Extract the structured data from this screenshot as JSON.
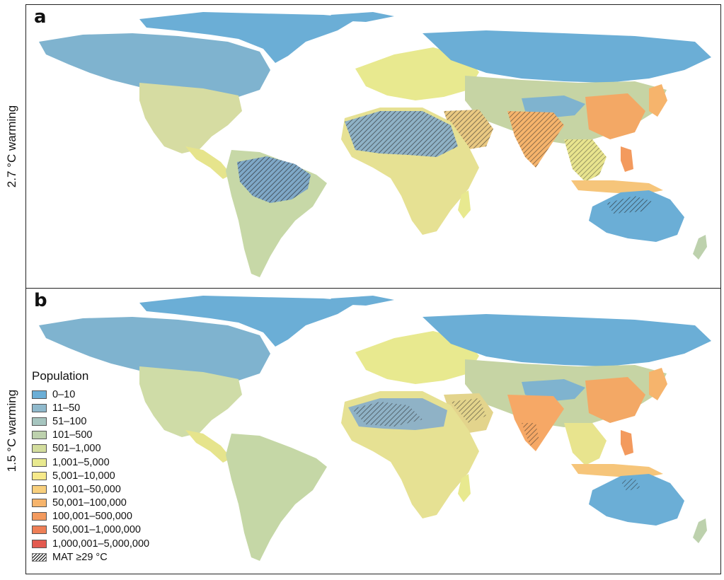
{
  "panels": [
    {
      "letter": "a",
      "side_label": "2.7 °C warming"
    },
    {
      "letter": "b",
      "side_label": "1.5 °C warming"
    }
  ],
  "legend": {
    "title": "Population",
    "items": [
      {
        "label": "0–10",
        "color": "#6baed6"
      },
      {
        "label": "11–50",
        "color": "#8fb9cc"
      },
      {
        "label": "51–100",
        "color": "#a6c5bf"
      },
      {
        "label": "101–500",
        "color": "#bdd1ad"
      },
      {
        "label": "501–1,000",
        "color": "#d3dd9d"
      },
      {
        "label": "1,001–5,000",
        "color": "#e8e98f"
      },
      {
        "label": "5,001–10,000",
        "color": "#f6e98a"
      },
      {
        "label": "10,001–50,000",
        "color": "#f8cf7d"
      },
      {
        "label": "50,001–100,000",
        "color": "#f6b46c"
      },
      {
        "label": "100,001–500,000",
        "color": "#f39a5e"
      },
      {
        "label": "500,001–1,000,000",
        "color": "#ee7f56"
      },
      {
        "label": "1,000,001–5,000,000",
        "color": "#e35a4f"
      }
    ],
    "hatch_label": "MAT ≥29 °C"
  }
}
